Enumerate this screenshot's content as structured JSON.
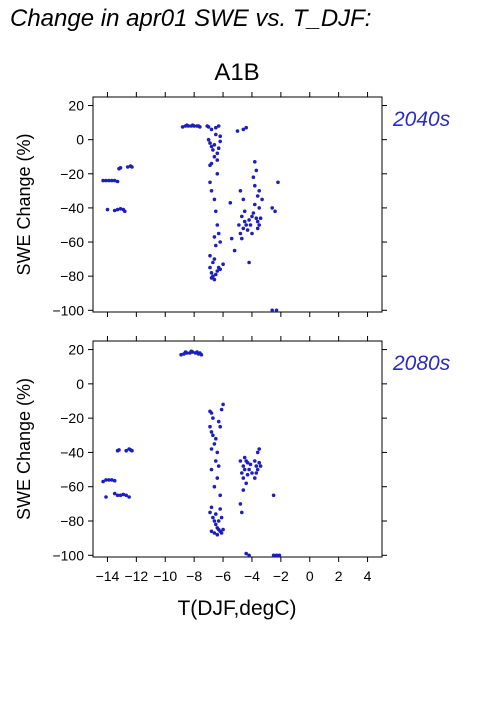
{
  "title": "Change in apr01 SWE vs. T_DJF:",
  "scenario": "A1B",
  "colors": {
    "points": "#1c1ec0",
    "period_label": "#2a2cc0",
    "axes": "#000000"
  },
  "chart_data": [
    {
      "type": "scatter",
      "period_label": "2040s",
      "ylabel": "SWE Change (%)",
      "xlabel": "",
      "xlim": [
        -15,
        5
      ],
      "ylim": [
        -101,
        25
      ],
      "yticks": [
        20,
        0,
        -20,
        -40,
        -60,
        -80,
        -100
      ],
      "ytick_labels": [
        "20",
        "0",
        "−20",
        "−40",
        "−60",
        "−80",
        "−100"
      ],
      "xticks": [
        -14,
        -12,
        -10,
        -8,
        -6,
        -4,
        -2,
        0,
        2,
        4
      ],
      "points": [
        [
          -14.3,
          -24
        ],
        [
          -14.1,
          -24
        ],
        [
          -13.9,
          -24
        ],
        [
          -13.7,
          -24
        ],
        [
          -13.5,
          -24
        ],
        [
          -13.3,
          -24.5
        ],
        [
          -14.0,
          -41
        ],
        [
          -13.2,
          -17
        ],
        [
          -13.1,
          -16.5
        ],
        [
          -12.6,
          -16
        ],
        [
          -12.4,
          -15.5
        ],
        [
          -12.3,
          -16
        ],
        [
          -13.5,
          -41.5
        ],
        [
          -13.3,
          -41
        ],
        [
          -13.1,
          -40.5
        ],
        [
          -12.9,
          -41
        ],
        [
          -12.8,
          -42
        ],
        [
          -8.8,
          7.5
        ],
        [
          -8.6,
          8
        ],
        [
          -8.4,
          8
        ],
        [
          -8.2,
          8
        ],
        [
          -8.0,
          8
        ],
        [
          -7.8,
          8
        ],
        [
          -7.6,
          7.5
        ],
        [
          -8.5,
          8.5
        ],
        [
          -8.1,
          8.5
        ],
        [
          -7.7,
          8
        ],
        [
          -7.0,
          7.5
        ],
        [
          -7.1,
          8
        ],
        [
          -6.8,
          6
        ],
        [
          -6.5,
          7
        ],
        [
          -6.3,
          8
        ],
        [
          -7.0,
          0
        ],
        [
          -6.9,
          -2
        ],
        [
          -6.8,
          -4
        ],
        [
          -6.7,
          -6
        ],
        [
          -6.6,
          -3
        ],
        [
          -6.4,
          -8
        ],
        [
          -6.3,
          -5
        ],
        [
          -6.2,
          -1
        ],
        [
          -6.6,
          -10
        ],
        [
          -6.4,
          -12
        ],
        [
          -6.8,
          -14
        ],
        [
          -6.9,
          -15
        ],
        [
          -6.2,
          2
        ],
        [
          -6.5,
          3
        ],
        [
          -6.4,
          -20
        ],
        [
          -6.9,
          -25
        ],
        [
          -6.8,
          -30
        ],
        [
          -6.6,
          -35
        ],
        [
          -6.5,
          -42
        ],
        [
          -6.4,
          -50
        ],
        [
          -6.6,
          -57
        ],
        [
          -6.3,
          -55
        ],
        [
          -6.2,
          -60
        ],
        [
          -6.5,
          -62
        ],
        [
          -6.9,
          -68
        ],
        [
          -6.7,
          -72
        ],
        [
          -6.9,
          -75
        ],
        [
          -6.8,
          -78
        ],
        [
          -6.7,
          -80
        ],
        [
          -6.6,
          -82
        ],
        [
          -6.5,
          -79
        ],
        [
          -6.4,
          -77
        ],
        [
          -6.3,
          -75
        ],
        [
          -6.2,
          -76
        ],
        [
          -6.0,
          -73
        ],
        [
          -6.6,
          -70
        ],
        [
          -6.8,
          -81
        ],
        [
          -5.5,
          -37
        ],
        [
          -5.4,
          -58
        ],
        [
          -5.2,
          -65
        ],
        [
          -5.0,
          5
        ],
        [
          -4.6,
          6
        ],
        [
          -4.4,
          7
        ],
        [
          -4.8,
          -30
        ],
        [
          -4.6,
          -35
        ],
        [
          -4.7,
          -45
        ],
        [
          -4.5,
          -48
        ],
        [
          -4.4,
          -50
        ],
        [
          -4.6,
          -52
        ],
        [
          -4.8,
          -55
        ],
        [
          -4.7,
          -58
        ],
        [
          -4.2,
          -47
        ],
        [
          -4.1,
          -50
        ],
        [
          -4.0,
          -45
        ],
        [
          -4.3,
          -53
        ],
        [
          -4.9,
          -50
        ],
        [
          -4.5,
          -42
        ],
        [
          -4.2,
          -72
        ],
        [
          -4.0,
          -55
        ],
        [
          -3.9,
          -43
        ],
        [
          -3.8,
          -13
        ],
        [
          -3.7,
          -18
        ],
        [
          -3.9,
          -22
        ],
        [
          -3.6,
          -33
        ],
        [
          -3.8,
          -38
        ],
        [
          -3.5,
          -40
        ],
        [
          -3.7,
          -46
        ],
        [
          -3.6,
          -48
        ],
        [
          -3.5,
          -50
        ],
        [
          -3.4,
          -46
        ],
        [
          -3.6,
          -52
        ],
        [
          -3.8,
          -27
        ],
        [
          -3.3,
          -35
        ],
        [
          -3.5,
          -30
        ],
        [
          -2.6,
          -40
        ],
        [
          -2.4,
          -42
        ],
        [
          -2.2,
          -25
        ],
        [
          -2.6,
          -100
        ],
        [
          -2.3,
          -100
        ]
      ]
    },
    {
      "type": "scatter",
      "period_label": "2080s",
      "ylabel": "SWE Change (%)",
      "xlabel": "T(DJF,degC)",
      "xlim": [
        -15,
        5
      ],
      "ylim": [
        -101,
        25
      ],
      "yticks": [
        20,
        0,
        -20,
        -40,
        -60,
        -80,
        -100
      ],
      "ytick_labels": [
        "20",
        "0",
        "−20",
        "−40",
        "−60",
        "−80",
        "−100"
      ],
      "xticks": [
        -14,
        -12,
        -10,
        -8,
        -6,
        -4,
        -2,
        0,
        2,
        4
      ],
      "xtick_labels": [
        "−14",
        "−12",
        "−10",
        "−8",
        "−6",
        "−4",
        "−2",
        "0",
        "2",
        "4"
      ],
      "points": [
        [
          -14.3,
          -57
        ],
        [
          -14.1,
          -56
        ],
        [
          -13.9,
          -56
        ],
        [
          -13.7,
          -56
        ],
        [
          -13.5,
          -56.5
        ],
        [
          -14.1,
          -66
        ],
        [
          -13.3,
          -39
        ],
        [
          -13.2,
          -38.5
        ],
        [
          -12.7,
          -39
        ],
        [
          -12.5,
          -38
        ],
        [
          -12.4,
          -38.5
        ],
        [
          -12.3,
          -39
        ],
        [
          -13.5,
          -64
        ],
        [
          -13.3,
          -65
        ],
        [
          -13.1,
          -65
        ],
        [
          -12.9,
          -64.5
        ],
        [
          -12.7,
          -65
        ],
        [
          -12.5,
          -66
        ],
        [
          -8.9,
          17
        ],
        [
          -8.7,
          17.5
        ],
        [
          -8.5,
          18
        ],
        [
          -8.3,
          18
        ],
        [
          -8.1,
          18.5
        ],
        [
          -7.9,
          18
        ],
        [
          -7.7,
          17.5
        ],
        [
          -7.5,
          17
        ],
        [
          -8.6,
          18.5
        ],
        [
          -8.2,
          19
        ],
        [
          -7.8,
          18.5
        ],
        [
          -7.6,
          18
        ],
        [
          -6.9,
          -16
        ],
        [
          -6.8,
          -17
        ],
        [
          -6.7,
          -20
        ],
        [
          -6.9,
          -25
        ],
        [
          -6.8,
          -28
        ],
        [
          -6.7,
          -30
        ],
        [
          -6.5,
          -32
        ],
        [
          -6.6,
          -35
        ],
        [
          -6.8,
          -38
        ],
        [
          -6.4,
          -40
        ],
        [
          -6.3,
          -22
        ],
        [
          -6.1,
          -15
        ],
        [
          -6.0,
          -12
        ],
        [
          -6.2,
          -25
        ],
        [
          -6.5,
          -45
        ],
        [
          -6.3,
          -48
        ],
        [
          -6.8,
          -50
        ],
        [
          -6.4,
          -55
        ],
        [
          -6.6,
          -60
        ],
        [
          -6.2,
          -65
        ],
        [
          -6.8,
          -72
        ],
        [
          -6.9,
          -75
        ],
        [
          -6.7,
          -78
        ],
        [
          -6.6,
          -80
        ],
        [
          -6.5,
          -82
        ],
        [
          -6.4,
          -84
        ],
        [
          -6.3,
          -85
        ],
        [
          -6.2,
          -86
        ],
        [
          -6.1,
          -87
        ],
        [
          -6.0,
          -85
        ],
        [
          -6.4,
          -88
        ],
        [
          -6.6,
          -87
        ],
        [
          -6.8,
          -86
        ],
        [
          -6.3,
          -80
        ],
        [
          -6.1,
          -78
        ],
        [
          -6.5,
          -76
        ],
        [
          -6.2,
          -73
        ],
        [
          -4.8,
          -45
        ],
        [
          -4.6,
          -48
        ],
        [
          -4.5,
          -50
        ],
        [
          -4.7,
          -52
        ],
        [
          -4.6,
          -55
        ],
        [
          -4.4,
          -58
        ],
        [
          -4.3,
          -46
        ],
        [
          -4.2,
          -50
        ],
        [
          -4.4,
          -45
        ],
        [
          -4.5,
          -43
        ],
        [
          -4.3,
          -53
        ],
        [
          -4.6,
          -62
        ],
        [
          -4.8,
          -70
        ],
        [
          -4.7,
          -75
        ],
        [
          -4.1,
          -47
        ],
        [
          -4.0,
          -52
        ],
        [
          -3.8,
          -45
        ],
        [
          -3.7,
          -48
        ],
        [
          -3.6,
          -50
        ],
        [
          -3.5,
          -46
        ],
        [
          -3.7,
          -52
        ],
        [
          -3.6,
          -40
        ],
        [
          -3.5,
          -38
        ],
        [
          -3.8,
          -55
        ],
        [
          -3.4,
          -48
        ],
        [
          -4.4,
          -99
        ],
        [
          -4.2,
          -100
        ],
        [
          -2.5,
          -65
        ],
        [
          -2.5,
          -100
        ],
        [
          -2.3,
          -100
        ],
        [
          -2.1,
          -100
        ]
      ]
    }
  ]
}
